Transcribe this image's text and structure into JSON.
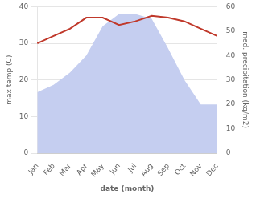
{
  "chart_data": {
    "type": "line",
    "categories": [
      "Jan",
      "Feb",
      "Mar",
      "Apr",
      "May",
      "Jun",
      "Jul",
      "Aug",
      "Sep",
      "Oct",
      "Nov",
      "Dec"
    ],
    "series": [
      {
        "type": "area",
        "color": "#c5cef0",
        "axis": "y2",
        "values": [
          25,
          28,
          33,
          40,
          52,
          57,
          57,
          55,
          43,
          30,
          20,
          20
        ]
      },
      {
        "type": "line",
        "color": "#c0392b",
        "values": [
          30.0,
          32.0,
          34.0,
          37.0,
          37.0,
          35.0,
          36.0,
          37.5,
          37.0,
          36.0,
          34.0,
          32.0
        ]
      }
    ],
    "xlabel": "date (month)",
    "ylabel": "max temp (C)",
    "y2label": "med. precipitation (kg/m2)",
    "ylim": [
      0,
      40
    ],
    "yticks": [
      0,
      10,
      20,
      30,
      40
    ],
    "y2lim": [
      0,
      60
    ],
    "y2ticks": [
      0,
      10,
      20,
      30,
      40,
      50,
      60
    ],
    "grid": true
  }
}
